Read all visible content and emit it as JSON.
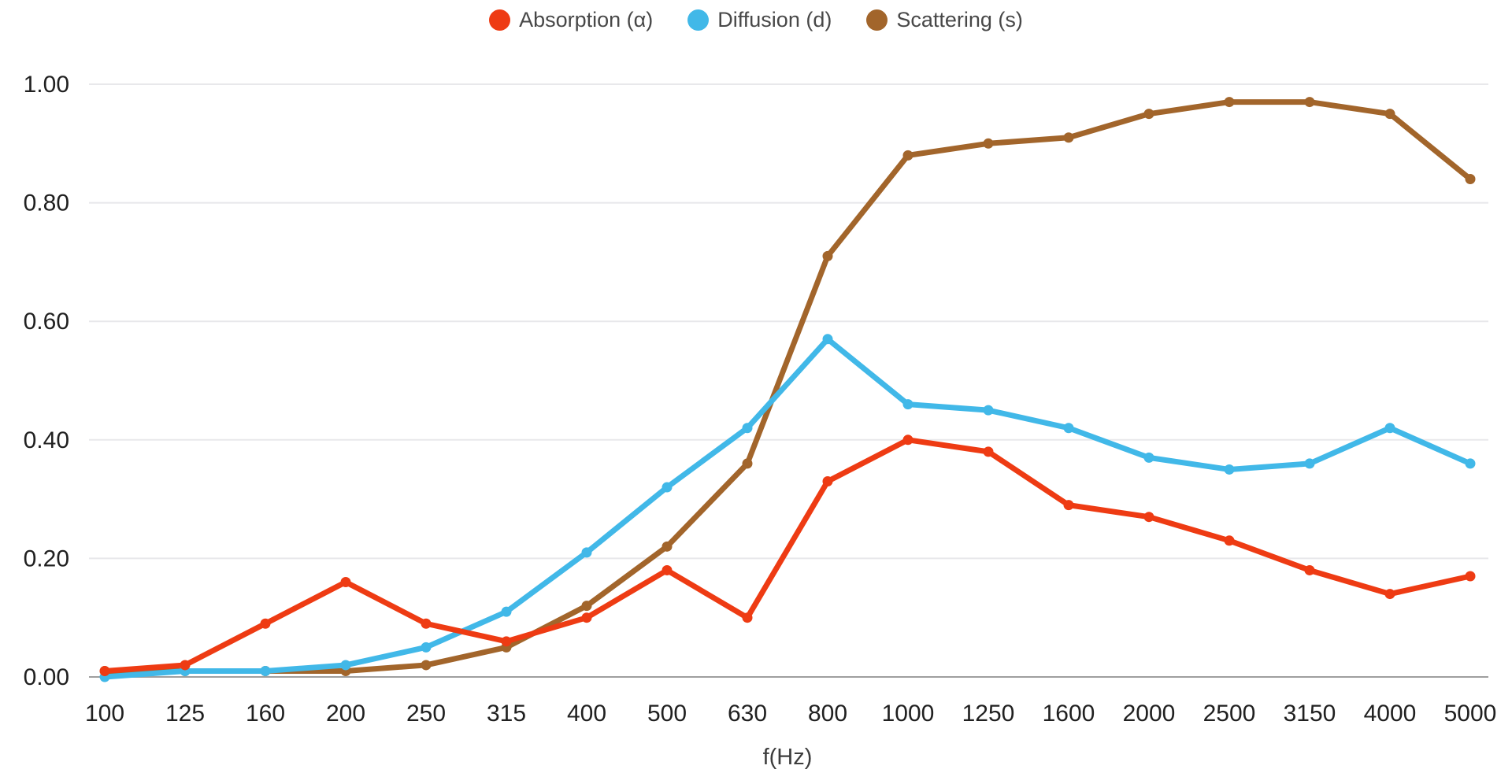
{
  "chart_data": {
    "type": "line",
    "title": "",
    "xlabel": "f(Hz)",
    "ylabel": "",
    "ylim": [
      0.0,
      1.0
    ],
    "ytick_step": 0.2,
    "yticks": [
      "0.00",
      "0.20",
      "0.40",
      "0.60",
      "0.80",
      "1.00"
    ],
    "grid": true,
    "legend_position": "top",
    "categories": [
      "100",
      "125",
      "160",
      "200",
      "250",
      "315",
      "400",
      "500",
      "630",
      "800",
      "1000",
      "1250",
      "1600",
      "2000",
      "2500",
      "3150",
      "4000",
      "5000"
    ],
    "series": [
      {
        "name": "Absorption (α)",
        "color": "#ee3b13",
        "values": [
          0.01,
          0.02,
          0.09,
          0.16,
          0.09,
          0.06,
          0.1,
          0.18,
          0.1,
          0.33,
          0.4,
          0.38,
          0.29,
          0.27,
          0.23,
          0.18,
          0.14,
          0.17
        ]
      },
      {
        "name": "Diffusion (d)",
        "color": "#41b8e8",
        "values": [
          0.0,
          0.01,
          0.01,
          0.02,
          0.05,
          0.11,
          0.21,
          0.32,
          0.42,
          0.57,
          0.46,
          0.45,
          0.42,
          0.37,
          0.35,
          0.36,
          0.42,
          0.36
        ]
      },
      {
        "name": "Scattering (s)",
        "color": "#a2652b",
        "values": [
          0.01,
          0.01,
          0.01,
          0.01,
          0.02,
          0.05,
          0.12,
          0.22,
          0.36,
          0.71,
          0.88,
          0.9,
          0.91,
          0.95,
          0.97,
          0.97,
          0.95,
          0.84
        ]
      }
    ],
    "style": {
      "grid_color": "#e8e8eb",
      "baseline_color": "#9e9e9e",
      "background": "#ffffff",
      "line_width": 7,
      "marker_radius": 6.5
    }
  }
}
